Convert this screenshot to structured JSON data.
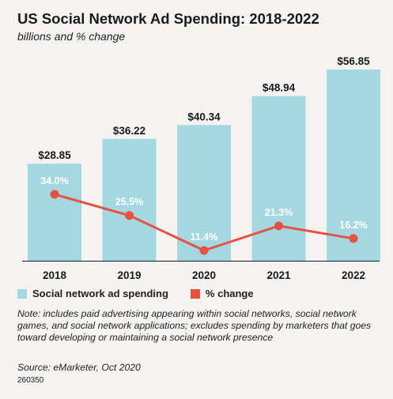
{
  "header": {
    "title": "US Social Network Ad Spending: 2018-2022",
    "subtitle": "billions and % change"
  },
  "chart_data": {
    "type": "bar",
    "categories": [
      "2018",
      "2019",
      "2020",
      "2021",
      "2022"
    ],
    "series": [
      {
        "name": "Social network ad spending",
        "type": "bar",
        "values": [
          28.85,
          36.22,
          40.34,
          48.94,
          56.85
        ],
        "labels": [
          "$28.85",
          "$36.22",
          "$40.34",
          "$48.94",
          "$56.85"
        ],
        "color": "#a3d8e2"
      },
      {
        "name": "% change",
        "type": "line",
        "values": [
          34.0,
          25.5,
          11.4,
          21.3,
          16.2
        ],
        "labels": [
          "34.0%",
          "25.5%",
          "11.4%",
          "21.3%",
          "16.2%"
        ],
        "color": "#e8513f"
      }
    ],
    "ylim": [
      0,
      56.85
    ],
    "grid": false,
    "legend": "bottom-left"
  },
  "legend": {
    "items": [
      {
        "label": "Social network ad spending",
        "color": "#a3d8e2"
      },
      {
        "label": "% change",
        "color": "#e8513f"
      }
    ]
  },
  "footer": {
    "note": "Note: includes paid advertising appearing within social networks, social network games, and social network applications; excludes spending by marketers that goes toward developing or maintaining a social network presence",
    "source": "Source: eMarketer, Oct 2020",
    "chart_id": "260350"
  }
}
